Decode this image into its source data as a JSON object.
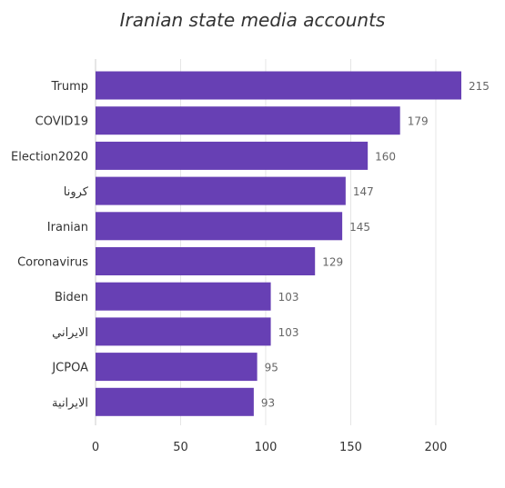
{
  "chart_data": {
    "type": "bar",
    "orientation": "horizontal",
    "title": "Iranian state media accounts",
    "categories": [
      "Trump",
      "COVID19",
      "Election2020",
      "كرونا",
      "Iranian",
      "Coronavirus",
      "Biden",
      "الايراني",
      "JCPOA",
      "الايرانية"
    ],
    "values": [
      215,
      179,
      160,
      147,
      145,
      129,
      103,
      103,
      95,
      93
    ],
    "xlim": [
      0,
      215
    ],
    "xticks": [
      0,
      50,
      100,
      150,
      200
    ],
    "grid": true,
    "bar_color": "#6740b4",
    "data_labels": true
  }
}
